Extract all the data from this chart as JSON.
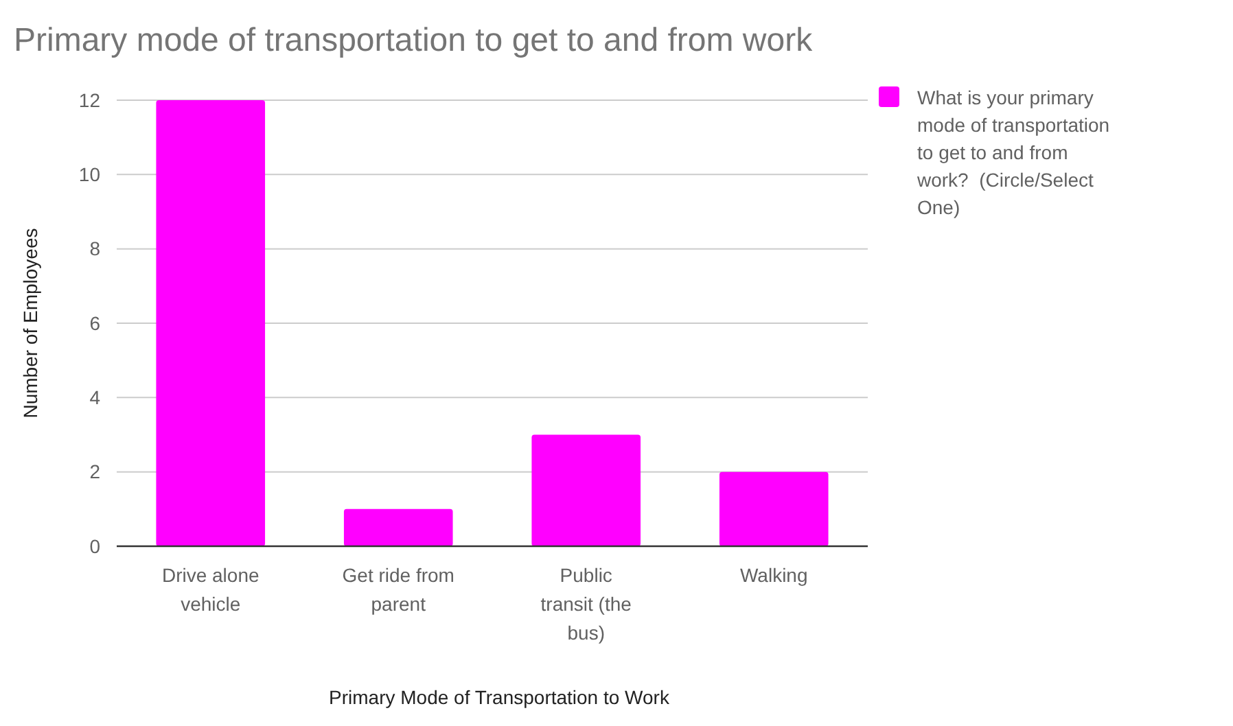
{
  "chart_data": {
    "type": "bar",
    "title": "Primary mode of transportation to get to and from work",
    "xlabel": "Primary Mode of Transportation to Work",
    "ylabel": "Number of Employees",
    "categories": [
      "Drive alone vehicle",
      "Get ride from parent",
      "Public transit (the bus)",
      "Walking"
    ],
    "series": [
      {
        "name": "What is your primary mode of transportation to get to and from work?  (Circle/Select One)",
        "color": "#ff00ff",
        "values": [
          12,
          1,
          3,
          2
        ]
      }
    ],
    "ylim": [
      0,
      12
    ],
    "yticks": [
      0,
      2,
      4,
      6,
      8,
      10,
      12
    ],
    "grid": "y",
    "legend": "right"
  }
}
